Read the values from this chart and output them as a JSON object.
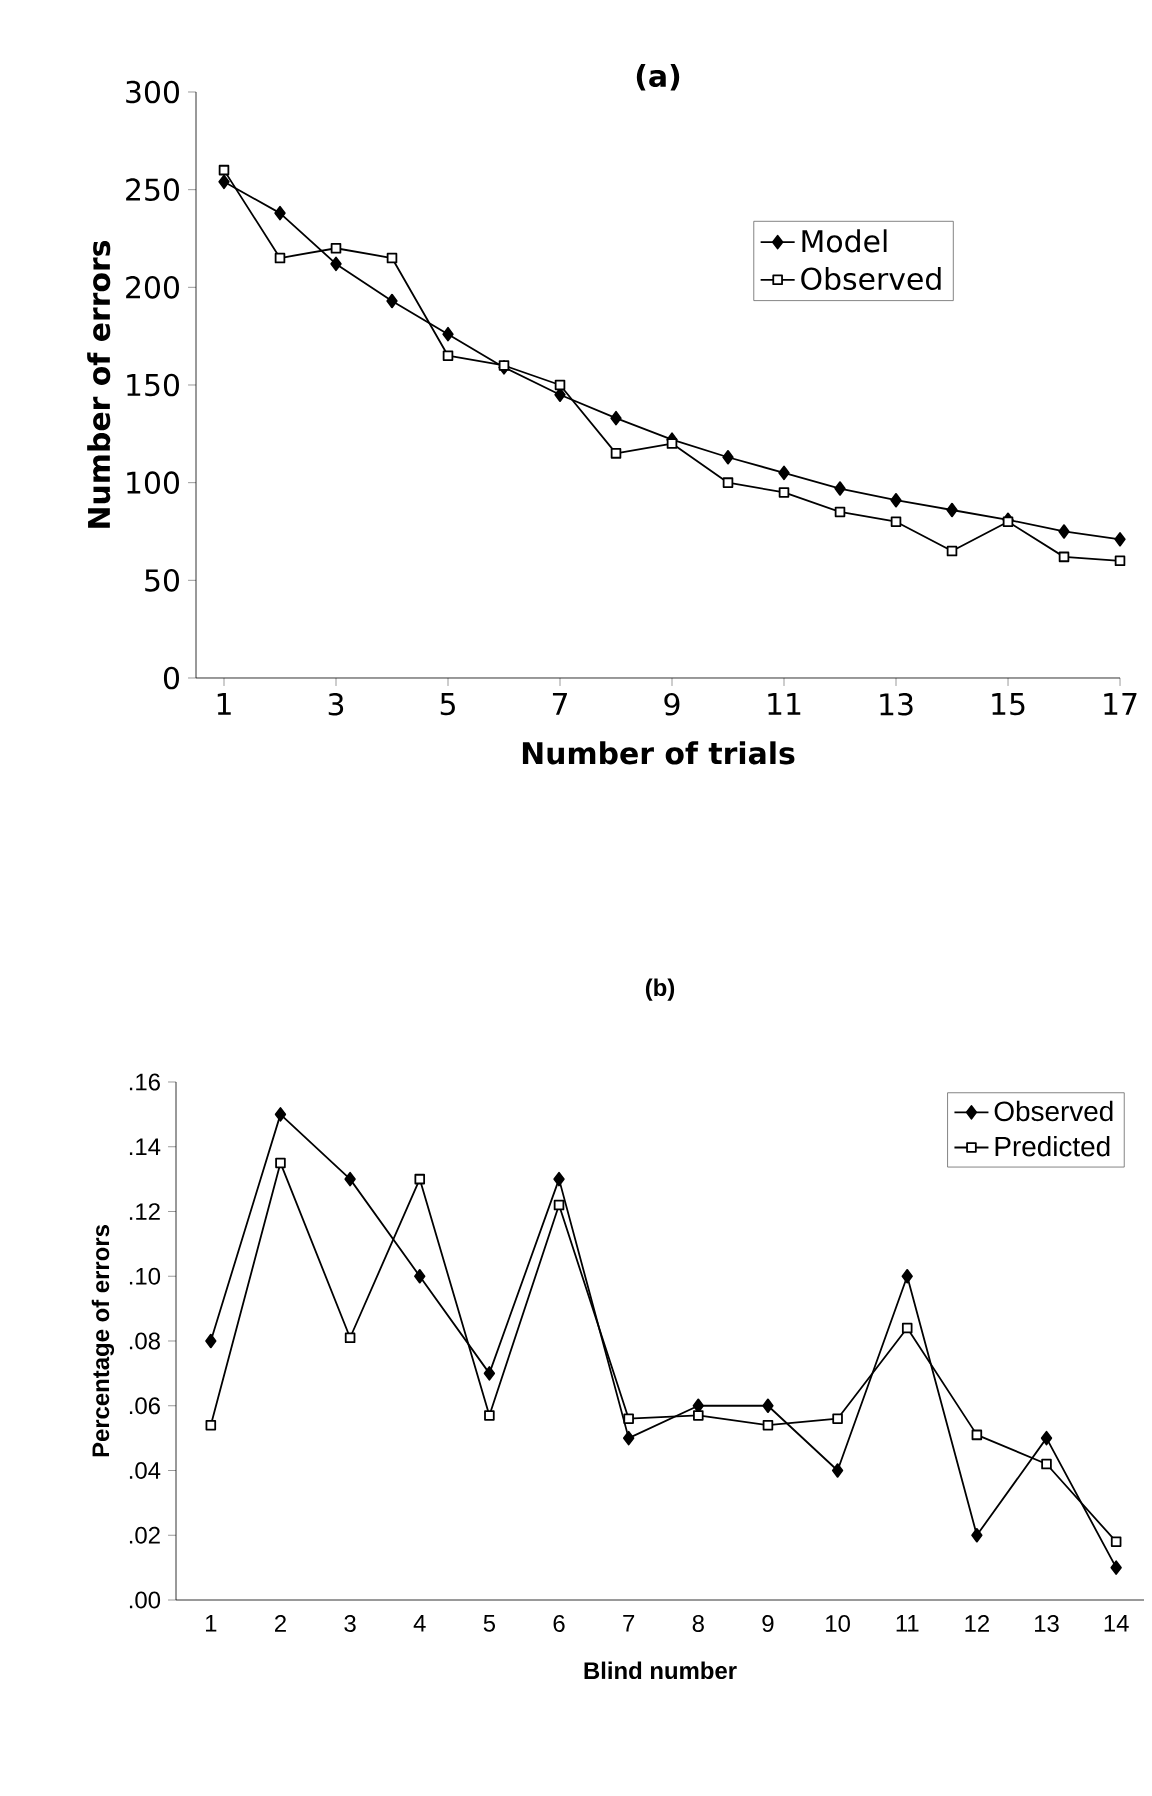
{
  "chart_data": [
    {
      "type": "line",
      "title": "(a)",
      "xlabel": "Number of trials",
      "ylabel": "Number of errors",
      "x": [
        1,
        2,
        3,
        4,
        5,
        6,
        7,
        8,
        9,
        10,
        11,
        12,
        13,
        14,
        15,
        16,
        17
      ],
      "series": [
        {
          "name": "Model",
          "color": "#000000",
          "marker": "diamond",
          "values": [
            254,
            238,
            212,
            193,
            176,
            159,
            145,
            133,
            122,
            113,
            105,
            97,
            91,
            86,
            81,
            75,
            71
          ]
        },
        {
          "name": "Observed",
          "color": "#000000",
          "marker": "square",
          "values": [
            260,
            215,
            220,
            215,
            165,
            160,
            150,
            115,
            120,
            100,
            95,
            85,
            80,
            65,
            80,
            62,
            60
          ]
        }
      ],
      "xlim": [
        0.5,
        17
      ],
      "xticks": [
        1,
        3,
        5,
        7,
        9,
        11,
        13,
        15,
        17
      ],
      "ylim": [
        0,
        300
      ],
      "yticks": [
        0,
        50,
        100,
        150,
        200,
        250,
        300
      ],
      "legend": "right",
      "grid": false,
      "line_style": "solid"
    },
    {
      "type": "line",
      "title": "(b)",
      "xlabel": "Blind number",
      "ylabel": "Percentage of errors",
      "categories": [
        "1",
        "2",
        "3",
        "4",
        "5",
        "6",
        "7",
        "8",
        "9",
        "10",
        "11",
        "12",
        "13",
        "14"
      ],
      "series": [
        {
          "name": "Observed",
          "color": "#000000",
          "marker": "diamond",
          "values": [
            0.08,
            0.15,
            0.13,
            0.1,
            0.07,
            0.13,
            0.05,
            0.06,
            0.06,
            0.04,
            0.1,
            0.02,
            0.05,
            0.01
          ]
        },
        {
          "name": "Predicted",
          "color": "#000000",
          "marker": "square",
          "values": [
            0.054,
            0.135,
            0.081,
            0.13,
            0.057,
            0.122,
            0.056,
            0.057,
            0.054,
            0.056,
            0.084,
            0.051,
            0.042,
            0.018
          ]
        }
      ],
      "ylim": [
        0,
        0.16
      ],
      "yticks": [
        {
          "value": 0,
          "label": ".00"
        },
        {
          "value": 0.02,
          "label": ".02"
        },
        {
          "value": 0.04,
          "label": ".04"
        },
        {
          "value": 0.06,
          "label": ".06"
        },
        {
          "value": 0.08,
          "label": ".08"
        },
        {
          "value": 0.1,
          "label": ".10"
        },
        {
          "value": 0.12,
          "label": ".12"
        },
        {
          "value": 0.14,
          "label": ".14"
        },
        {
          "value": 0.16,
          "label": ".16"
        }
      ],
      "legend": "top right",
      "grid": false,
      "line_style": "solid"
    }
  ]
}
